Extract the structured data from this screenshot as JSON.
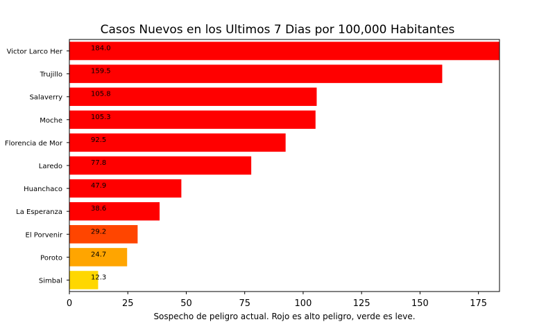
{
  "chart_data": {
    "type": "bar",
    "orientation": "horizontal",
    "title": "Casos Nuevos en los Ultimos 7 Dias por 100,000 Habitantes",
    "xlabel": "Sospecho de peligro actual. Rojo es alto peligro, verde es leve.",
    "ylabel": "",
    "xlim": [
      0,
      184
    ],
    "x_ticks": [
      0,
      25,
      50,
      75,
      100,
      125,
      150,
      175
    ],
    "grid": false,
    "categories": [
      "Victor Larco Her",
      "Trujillo",
      "Salaverry",
      "Moche",
      "Florencia de Mor",
      "Laredo",
      "Huanchaco",
      "La Esperanza",
      "El Porvenir",
      "Poroto",
      "Simbal"
    ],
    "values": [
      184.0,
      159.5,
      105.8,
      105.3,
      92.5,
      77.8,
      47.9,
      38.6,
      29.2,
      24.7,
      12.3
    ],
    "value_labels": [
      "184.0",
      "159.5",
      "105.8",
      "105.3",
      "92.5",
      "77.8",
      "47.9",
      "38.6",
      "29.2",
      "24.7",
      "12.3"
    ],
    "colors": [
      "#ff0000",
      "#ff0000",
      "#ff0000",
      "#ff0000",
      "#ff0000",
      "#ff0000",
      "#ff0000",
      "#ff0000",
      "#ff4500",
      "#ffa500",
      "#ffd700"
    ]
  }
}
